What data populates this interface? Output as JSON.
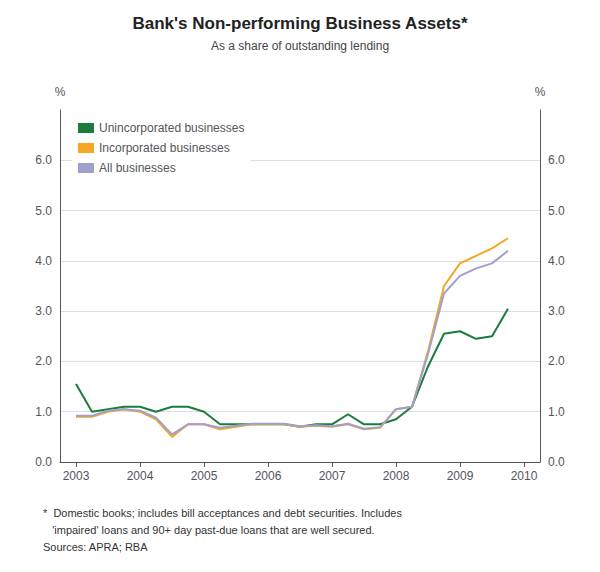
{
  "chart_data": {
    "type": "line",
    "title": "Bank's Non-performing Business Assets*",
    "subtitle": "As a share of outstanding lending",
    "footnote": "*  Domestic books; includes bill acceptances and debt securities. Includes\n   'impaired' loans and 90+ day past-due loans that are well secured.\nSources: APRA; RBA",
    "ylabel": "%",
    "y2label": "%",
    "x": [
      2003.0,
      2003.25,
      2003.5,
      2003.75,
      2004.0,
      2004.25,
      2004.5,
      2004.75,
      2005.0,
      2005.25,
      2005.5,
      2005.75,
      2006.0,
      2006.25,
      2006.5,
      2006.75,
      2007.0,
      2007.25,
      2007.5,
      2007.75,
      2008.0,
      2008.25,
      2008.5,
      2008.75,
      2009.0,
      2009.25,
      2009.5,
      2009.75
    ],
    "xlim": [
      2002.75,
      2010.25
    ],
    "xticks": [
      2003,
      2004,
      2005,
      2006,
      2007,
      2008,
      2009,
      2010
    ],
    "ylim": [
      0.0,
      7.0
    ],
    "yticks": [
      {
        "value": 0,
        "label": "0.0"
      },
      {
        "value": 1,
        "label": "1.0"
      },
      {
        "value": 2,
        "label": "2.0"
      },
      {
        "value": 3,
        "label": "3.0"
      },
      {
        "value": 4,
        "label": "4.0"
      },
      {
        "value": 5,
        "label": "5.0"
      },
      {
        "value": 6,
        "label": "6.0"
      }
    ],
    "y2lim": [
      0.0,
      7.0
    ],
    "y2ticks": [
      {
        "value": 0,
        "label": "0.0"
      },
      {
        "value": 1,
        "label": "1.0"
      },
      {
        "value": 2,
        "label": "2.0"
      },
      {
        "value": 3,
        "label": "3.0"
      },
      {
        "value": 4,
        "label": "4.0"
      },
      {
        "value": 5,
        "label": "5.0"
      },
      {
        "value": 6,
        "label": "6.0"
      }
    ],
    "grid": true,
    "legend": "upper left",
    "series": [
      {
        "name": "Unincorporated businesses",
        "color": "#1a7d3e",
        "values": [
          1.55,
          1.0,
          1.05,
          1.1,
          1.1,
          1.0,
          1.1,
          1.1,
          1.0,
          0.75,
          0.75,
          0.75,
          0.75,
          0.75,
          0.7,
          0.75,
          0.75,
          0.95,
          0.75,
          0.75,
          0.85,
          1.1,
          1.9,
          2.55,
          2.6,
          2.45,
          2.5,
          3.05
        ]
      },
      {
        "name": "Incorporated businesses",
        "color": "#f5a623",
        "values": [
          0.9,
          0.9,
          1.0,
          1.05,
          1.0,
          0.85,
          0.5,
          0.75,
          0.75,
          0.65,
          0.7,
          0.75,
          0.75,
          0.75,
          0.7,
          0.72,
          0.7,
          0.75,
          0.65,
          0.68,
          1.05,
          1.1,
          2.2,
          3.5,
          3.95,
          4.1,
          4.25,
          4.45
        ]
      },
      {
        "name": "All businesses",
        "color": "#a0a0cc",
        "values": [
          0.92,
          0.92,
          1.02,
          1.05,
          1.02,
          0.88,
          0.55,
          0.75,
          0.75,
          0.68,
          0.72,
          0.76,
          0.76,
          0.76,
          0.71,
          0.73,
          0.71,
          0.76,
          0.66,
          0.69,
          1.05,
          1.1,
          2.15,
          3.35,
          3.7,
          3.85,
          3.95,
          4.2
        ]
      }
    ]
  }
}
